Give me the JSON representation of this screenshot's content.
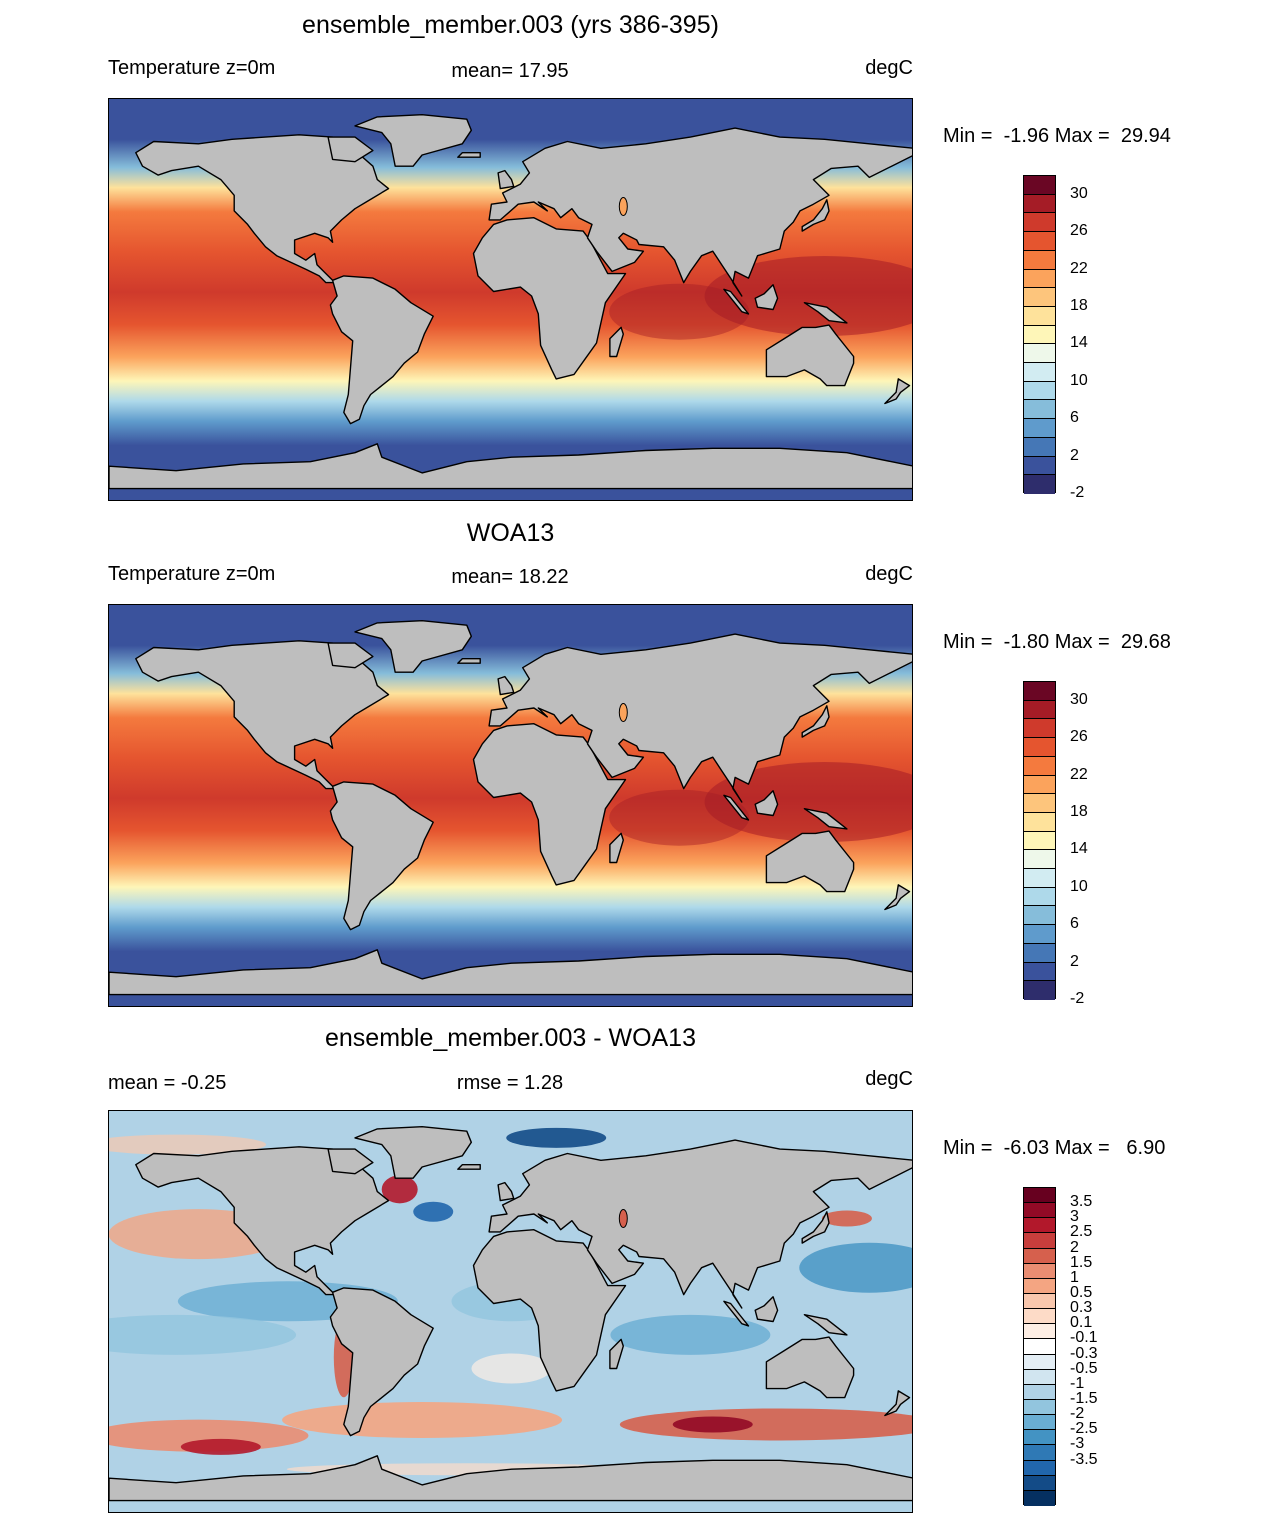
{
  "panels": [
    {
      "title": "ensemble_member.003 (yrs 386-395)",
      "left_label": "Temperature z=0m",
      "center_label": "mean=  17.95",
      "units": "degC",
      "minmax": "Min =  -1.96 Max =  29.94",
      "colorbar": {
        "colors": [
          "#6a0624",
          "#a51c26",
          "#cf3a2c",
          "#e5552f",
          "#f47a3e",
          "#fba35c",
          "#fdc57c",
          "#fee29b",
          "#fef6b8",
          "#eef8ea",
          "#d2ecf2",
          "#aed9ea",
          "#86bdda",
          "#5f9bcc",
          "#4577b6",
          "#3a529c",
          "#2e2d6c"
        ],
        "labels": [
          "30",
          "26",
          "22",
          "18",
          "14",
          "10",
          "6",
          "2",
          "-2"
        ]
      },
      "map_style": "absolute"
    },
    {
      "title": "WOA13",
      "left_label": "Temperature z=0m",
      "center_label": "mean=  18.22",
      "units": "degC",
      "minmax": "Min =  -1.80 Max =  29.68",
      "colorbar": {
        "colors": [
          "#6a0624",
          "#a51c26",
          "#cf3a2c",
          "#e5552f",
          "#f47a3e",
          "#fba35c",
          "#fdc57c",
          "#fee29b",
          "#fef6b8",
          "#eef8ea",
          "#d2ecf2",
          "#aed9ea",
          "#86bdda",
          "#5f9bcc",
          "#4577b6",
          "#3a529c",
          "#2e2d6c"
        ],
        "labels": [
          "30",
          "26",
          "22",
          "18",
          "14",
          "10",
          "6",
          "2",
          "-2"
        ]
      },
      "map_style": "absolute"
    },
    {
      "title": "ensemble_member.003 - WOA13",
      "left_label": "mean =  -0.25",
      "center_label": "rmse =   1.28",
      "units": "degC",
      "minmax": "Min =  -6.03 Max =   6.90",
      "colorbar": {
        "colors": [
          "#67001f",
          "#920a26",
          "#b2182b",
          "#c83e3c",
          "#d6604d",
          "#ea8d72",
          "#f4a582",
          "#f9c7ad",
          "#fddbc7",
          "#fdeee4",
          "#ffffff",
          "#e4eef5",
          "#d1e5f0",
          "#b0d2e6",
          "#92c5de",
          "#6aaed3",
          "#4393c3",
          "#2f79b5",
          "#2166ac",
          "#134b87",
          "#053061"
        ],
        "labels": [
          "3.5",
          "3",
          "2.5",
          "2",
          "1.5",
          "1",
          "0.5",
          "0.3",
          "0.1",
          "-0.1",
          "-0.3",
          "-0.5",
          "-1",
          "-1.5",
          "-2",
          "-2.5",
          "-3",
          "-3.5"
        ]
      },
      "map_style": "difference"
    }
  ]
}
